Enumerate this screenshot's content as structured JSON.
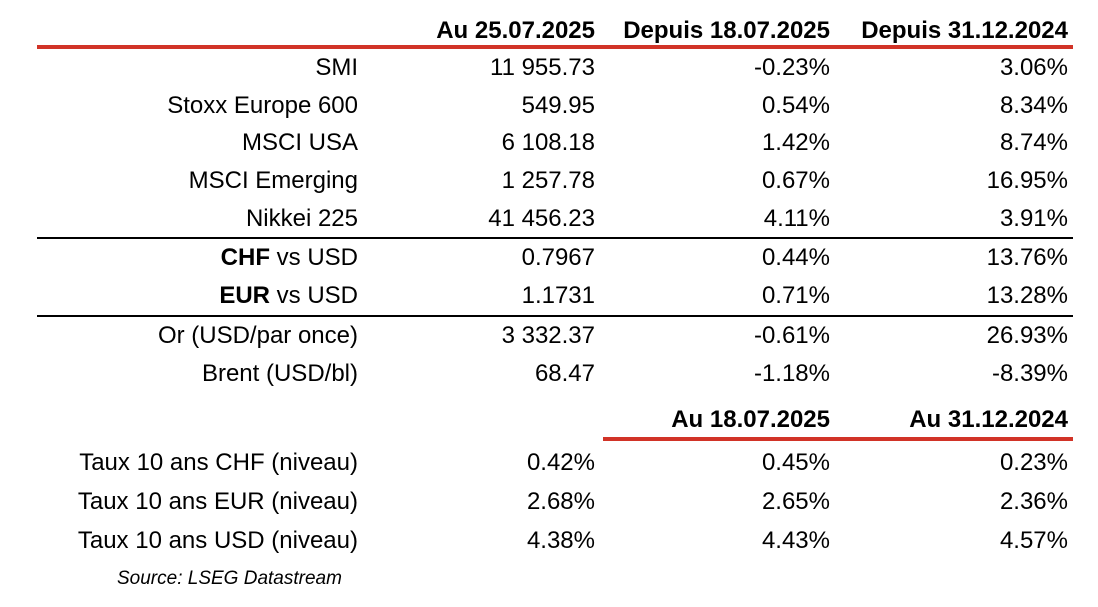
{
  "colors": {
    "accent_red": "#d13327",
    "divider_black": "#000000",
    "text": "#000000",
    "background": "#ffffff"
  },
  "market_table": {
    "column_headers": [
      "Au 25.07.2025",
      "Depuis 18.07.2025",
      "Depuis 31.12.2024"
    ],
    "groups": [
      {
        "name": "indices",
        "rows": [
          {
            "label": "SMI",
            "values": [
              "11 955.73",
              "-0.23%",
              "3.06%"
            ]
          },
          {
            "label": "Stoxx Europe 600",
            "values": [
              "549.95",
              "0.54%",
              "8.34%"
            ]
          },
          {
            "label": "MSCI USA",
            "values": [
              "6 108.18",
              "1.42%",
              "8.74%"
            ]
          },
          {
            "label": "MSCI Emerging",
            "values": [
              "1 257.78",
              "0.67%",
              "16.95%"
            ]
          },
          {
            "label": "Nikkei 225",
            "values": [
              "41 456.23",
              "4.11%",
              "3.91%"
            ]
          }
        ]
      },
      {
        "name": "currencies",
        "rows": [
          {
            "label_bold": "CHF",
            "label_rest": " vs USD",
            "values": [
              "0.7967",
              "0.44%",
              "13.76%"
            ]
          },
          {
            "label_bold": "EUR",
            "label_rest": " vs USD",
            "values": [
              "1.1731",
              "0.71%",
              "13.28%"
            ]
          }
        ]
      },
      {
        "name": "commodities",
        "rows": [
          {
            "label": "Or (USD/par once)",
            "values": [
              "3 332.37",
              "-0.61%",
              "26.93%"
            ]
          },
          {
            "label": "Brent (USD/bl)",
            "values": [
              "68.47",
              "-1.18%",
              "-8.39%"
            ]
          }
        ]
      }
    ]
  },
  "rates_table": {
    "column_headers": [
      "Au 18.07.2025",
      "Au 31.12.2024"
    ],
    "rows": [
      {
        "label": "Taux 10 ans CHF (niveau)",
        "values": [
          "0.42%",
          "0.45%",
          "0.23%"
        ]
      },
      {
        "label": "Taux 10 ans EUR (niveau)",
        "values": [
          "2.68%",
          "2.65%",
          "2.36%"
        ]
      },
      {
        "label": "Taux 10 ans USD (niveau)",
        "values": [
          "4.38%",
          "4.43%",
          "4.57%"
        ]
      }
    ]
  },
  "source_note": "Source: LSEG Datastream"
}
